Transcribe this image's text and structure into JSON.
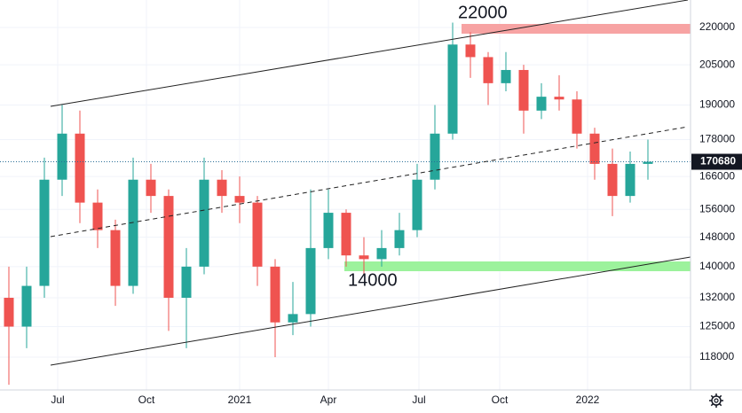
{
  "chart_data": {
    "type": "candlestick",
    "open": [
      132000,
      125000,
      135000,
      165000,
      180000,
      158000,
      150000,
      135000,
      165000,
      160000,
      132000,
      140000,
      165000,
      160000,
      158000,
      140000,
      126000,
      128000,
      145000,
      155000,
      143000,
      142000,
      145000,
      150000,
      165000,
      180000,
      213000,
      208000,
      198000,
      203000,
      188000,
      193000,
      192000,
      180000,
      170000,
      160000,
      170000
    ],
    "high": [
      140000,
      140000,
      172000,
      190000,
      188000,
      162000,
      153000,
      172000,
      170000,
      162000,
      145000,
      172000,
      168000,
      166000,
      160000,
      142000,
      136000,
      162000,
      162000,
      156000,
      148000,
      150000,
      155000,
      170000,
      190000,
      222000,
      218000,
      210000,
      210000,
      205000,
      198000,
      201000,
      195000,
      182000,
      175000,
      174000,
      178000
    ],
    "low": [
      112000,
      120000,
      132000,
      160000,
      152000,
      145000,
      130000,
      133000,
      155000,
      124000,
      120000,
      138000,
      155000,
      152000,
      135000,
      118000,
      123000,
      125000,
      142000,
      140000,
      138000,
      140000,
      143000,
      148000,
      162000,
      178000,
      200000,
      190000,
      195000,
      180000,
      185000,
      188000,
      175000,
      165000,
      154000,
      158000,
      165000
    ],
    "close": [
      125000,
      135000,
      165000,
      180000,
      158000,
      150000,
      135000,
      165000,
      160000,
      132000,
      140000,
      165000,
      160000,
      158000,
      140000,
      126000,
      128000,
      145000,
      155000,
      143000,
      142000,
      145000,
      150000,
      165000,
      180000,
      213000,
      208000,
      198000,
      203000,
      188000,
      193000,
      192000,
      180000,
      170000,
      160000,
      170000,
      170680
    ],
    "up_color": "#26a69a",
    "down_color": "#ef5350",
    "last_price": 170680,
    "annotations": [
      "22000",
      "14000"
    ],
    "log_scale": true,
    "grid": true,
    "xlim": [
      -0.5,
      38.4
    ],
    "xticks": [
      {
        "value": 2.75,
        "label": "Jul"
      },
      {
        "value": 7.75,
        "label": "Oct"
      },
      {
        "value": 13,
        "label": "2021"
      },
      {
        "value": 18,
        "label": "Apr"
      },
      {
        "value": 23.1,
        "label": "Jul"
      },
      {
        "value": 27.65,
        "label": "Oct"
      },
      {
        "value": 32.6,
        "label": "2022"
      }
    ],
    "ylim": [
      110900,
      231700
    ],
    "yticks": [
      118000,
      125000,
      132000,
      140000,
      148000,
      156000,
      166000,
      178000,
      190000,
      205000,
      220000
    ]
  }
}
